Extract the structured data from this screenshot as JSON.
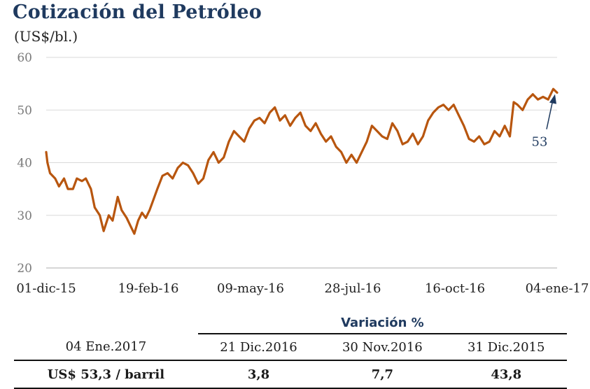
{
  "header": {
    "title": "Cotización del Petróleo",
    "unit": "(US$/bl.)"
  },
  "colors": {
    "line": "#b8560f",
    "title": "#1f3a5f",
    "grid": "#d9d9d9"
  },
  "chart_data": {
    "type": "line",
    "title": "Cotización del Petróleo",
    "ylabel": "(US$/bl.)",
    "xlabel": "",
    "ylim": [
      20,
      60
    ],
    "yticks": [
      20,
      30,
      40,
      50,
      60
    ],
    "xlim": [
      "2015-12-01",
      "2017-01-04"
    ],
    "xticks": [
      "01-dic-15",
      "19-feb-16",
      "09-may-16",
      "28-jul-16",
      "16-oct-16",
      "04-ene-17"
    ],
    "grid": "horizontal",
    "series": [
      {
        "x": [
          "2015-12-01",
          "2015-12-02",
          "2015-12-04",
          "2015-12-08",
          "2015-12-11",
          "2015-12-15",
          "2015-12-18",
          "2015-12-22",
          "2015-12-25",
          "2015-12-29",
          "2016-01-01",
          "2016-01-05",
          "2016-01-08",
          "2016-01-12",
          "2016-01-15",
          "2016-01-19",
          "2016-01-22",
          "2016-01-26",
          "2016-01-29",
          "2016-02-02",
          "2016-02-05",
          "2016-02-08",
          "2016-02-11",
          "2016-02-14",
          "2016-02-17",
          "2016-02-20",
          "2016-02-23",
          "2016-02-26",
          "2016-03-01",
          "2016-03-05",
          "2016-03-09",
          "2016-03-13",
          "2016-03-17",
          "2016-03-21",
          "2016-03-25",
          "2016-03-29",
          "2016-04-02",
          "2016-04-06",
          "2016-04-10",
          "2016-04-14",
          "2016-04-18",
          "2016-04-22",
          "2016-04-26",
          "2016-04-30",
          "2016-05-04",
          "2016-05-08",
          "2016-05-12",
          "2016-05-16",
          "2016-05-20",
          "2016-05-24",
          "2016-05-28",
          "2016-06-01",
          "2016-06-05",
          "2016-06-09",
          "2016-06-13",
          "2016-06-17",
          "2016-06-21",
          "2016-06-25",
          "2016-06-29",
          "2016-07-03",
          "2016-07-07",
          "2016-07-11",
          "2016-07-15",
          "2016-07-19",
          "2016-07-23",
          "2016-07-27",
          "2016-07-31",
          "2016-08-04",
          "2016-08-08",
          "2016-08-12",
          "2016-08-16",
          "2016-08-20",
          "2016-08-24",
          "2016-08-28",
          "2016-09-01",
          "2016-09-05",
          "2016-09-09",
          "2016-09-13",
          "2016-09-17",
          "2016-09-21",
          "2016-09-25",
          "2016-09-29",
          "2016-10-03",
          "2016-10-07",
          "2016-10-11",
          "2016-10-15",
          "2016-10-19",
          "2016-10-23",
          "2016-10-27",
          "2016-10-31",
          "2016-11-04",
          "2016-11-08",
          "2016-11-12",
          "2016-11-16",
          "2016-11-20",
          "2016-11-24",
          "2016-11-28",
          "2016-12-01",
          "2016-12-04",
          "2016-12-08",
          "2016-12-12",
          "2016-12-16",
          "2016-12-20",
          "2016-12-24",
          "2016-12-28",
          "2017-01-01",
          "2017-01-04"
        ],
        "values": [
          42,
          40,
          38,
          37,
          35.5,
          37,
          35,
          35,
          37,
          36.5,
          37,
          35,
          31.5,
          30,
          27,
          30,
          29,
          33.5,
          31,
          29.5,
          28,
          26.5,
          29,
          30.5,
          29.5,
          31,
          33,
          35,
          37.5,
          38,
          37,
          39,
          40,
          39.5,
          38,
          36,
          37,
          40.5,
          42,
          40,
          41,
          44,
          46,
          45,
          44,
          46.5,
          48,
          48.5,
          47.5,
          49.5,
          50.5,
          48,
          49,
          47,
          48.5,
          49.5,
          47,
          46,
          47.5,
          45.5,
          44,
          45,
          43,
          42,
          40,
          41.5,
          40,
          42,
          44,
          47,
          46,
          45,
          44.5,
          47.5,
          46,
          43.5,
          44,
          45.5,
          43.5,
          45,
          48,
          49.5,
          50.5,
          51,
          50,
          51,
          49,
          47,
          44.5,
          44,
          45,
          43.5,
          44,
          46,
          45,
          47,
          45,
          51.5,
          51,
          50,
          52,
          53,
          52,
          52.5,
          52,
          54,
          53.3
        ]
      }
    ],
    "annotation": {
      "label": "53",
      "x": "2017-01-04",
      "y": 53
    }
  },
  "table": {
    "header": "Variación %",
    "columns": [
      "04 Ene.2017",
      "21 Dic.2016",
      "30 Nov.2016",
      "31 Dic.2015"
    ],
    "values": [
      "US$ 53,3 / barril",
      "3,8",
      "7,7",
      "43,8"
    ]
  }
}
